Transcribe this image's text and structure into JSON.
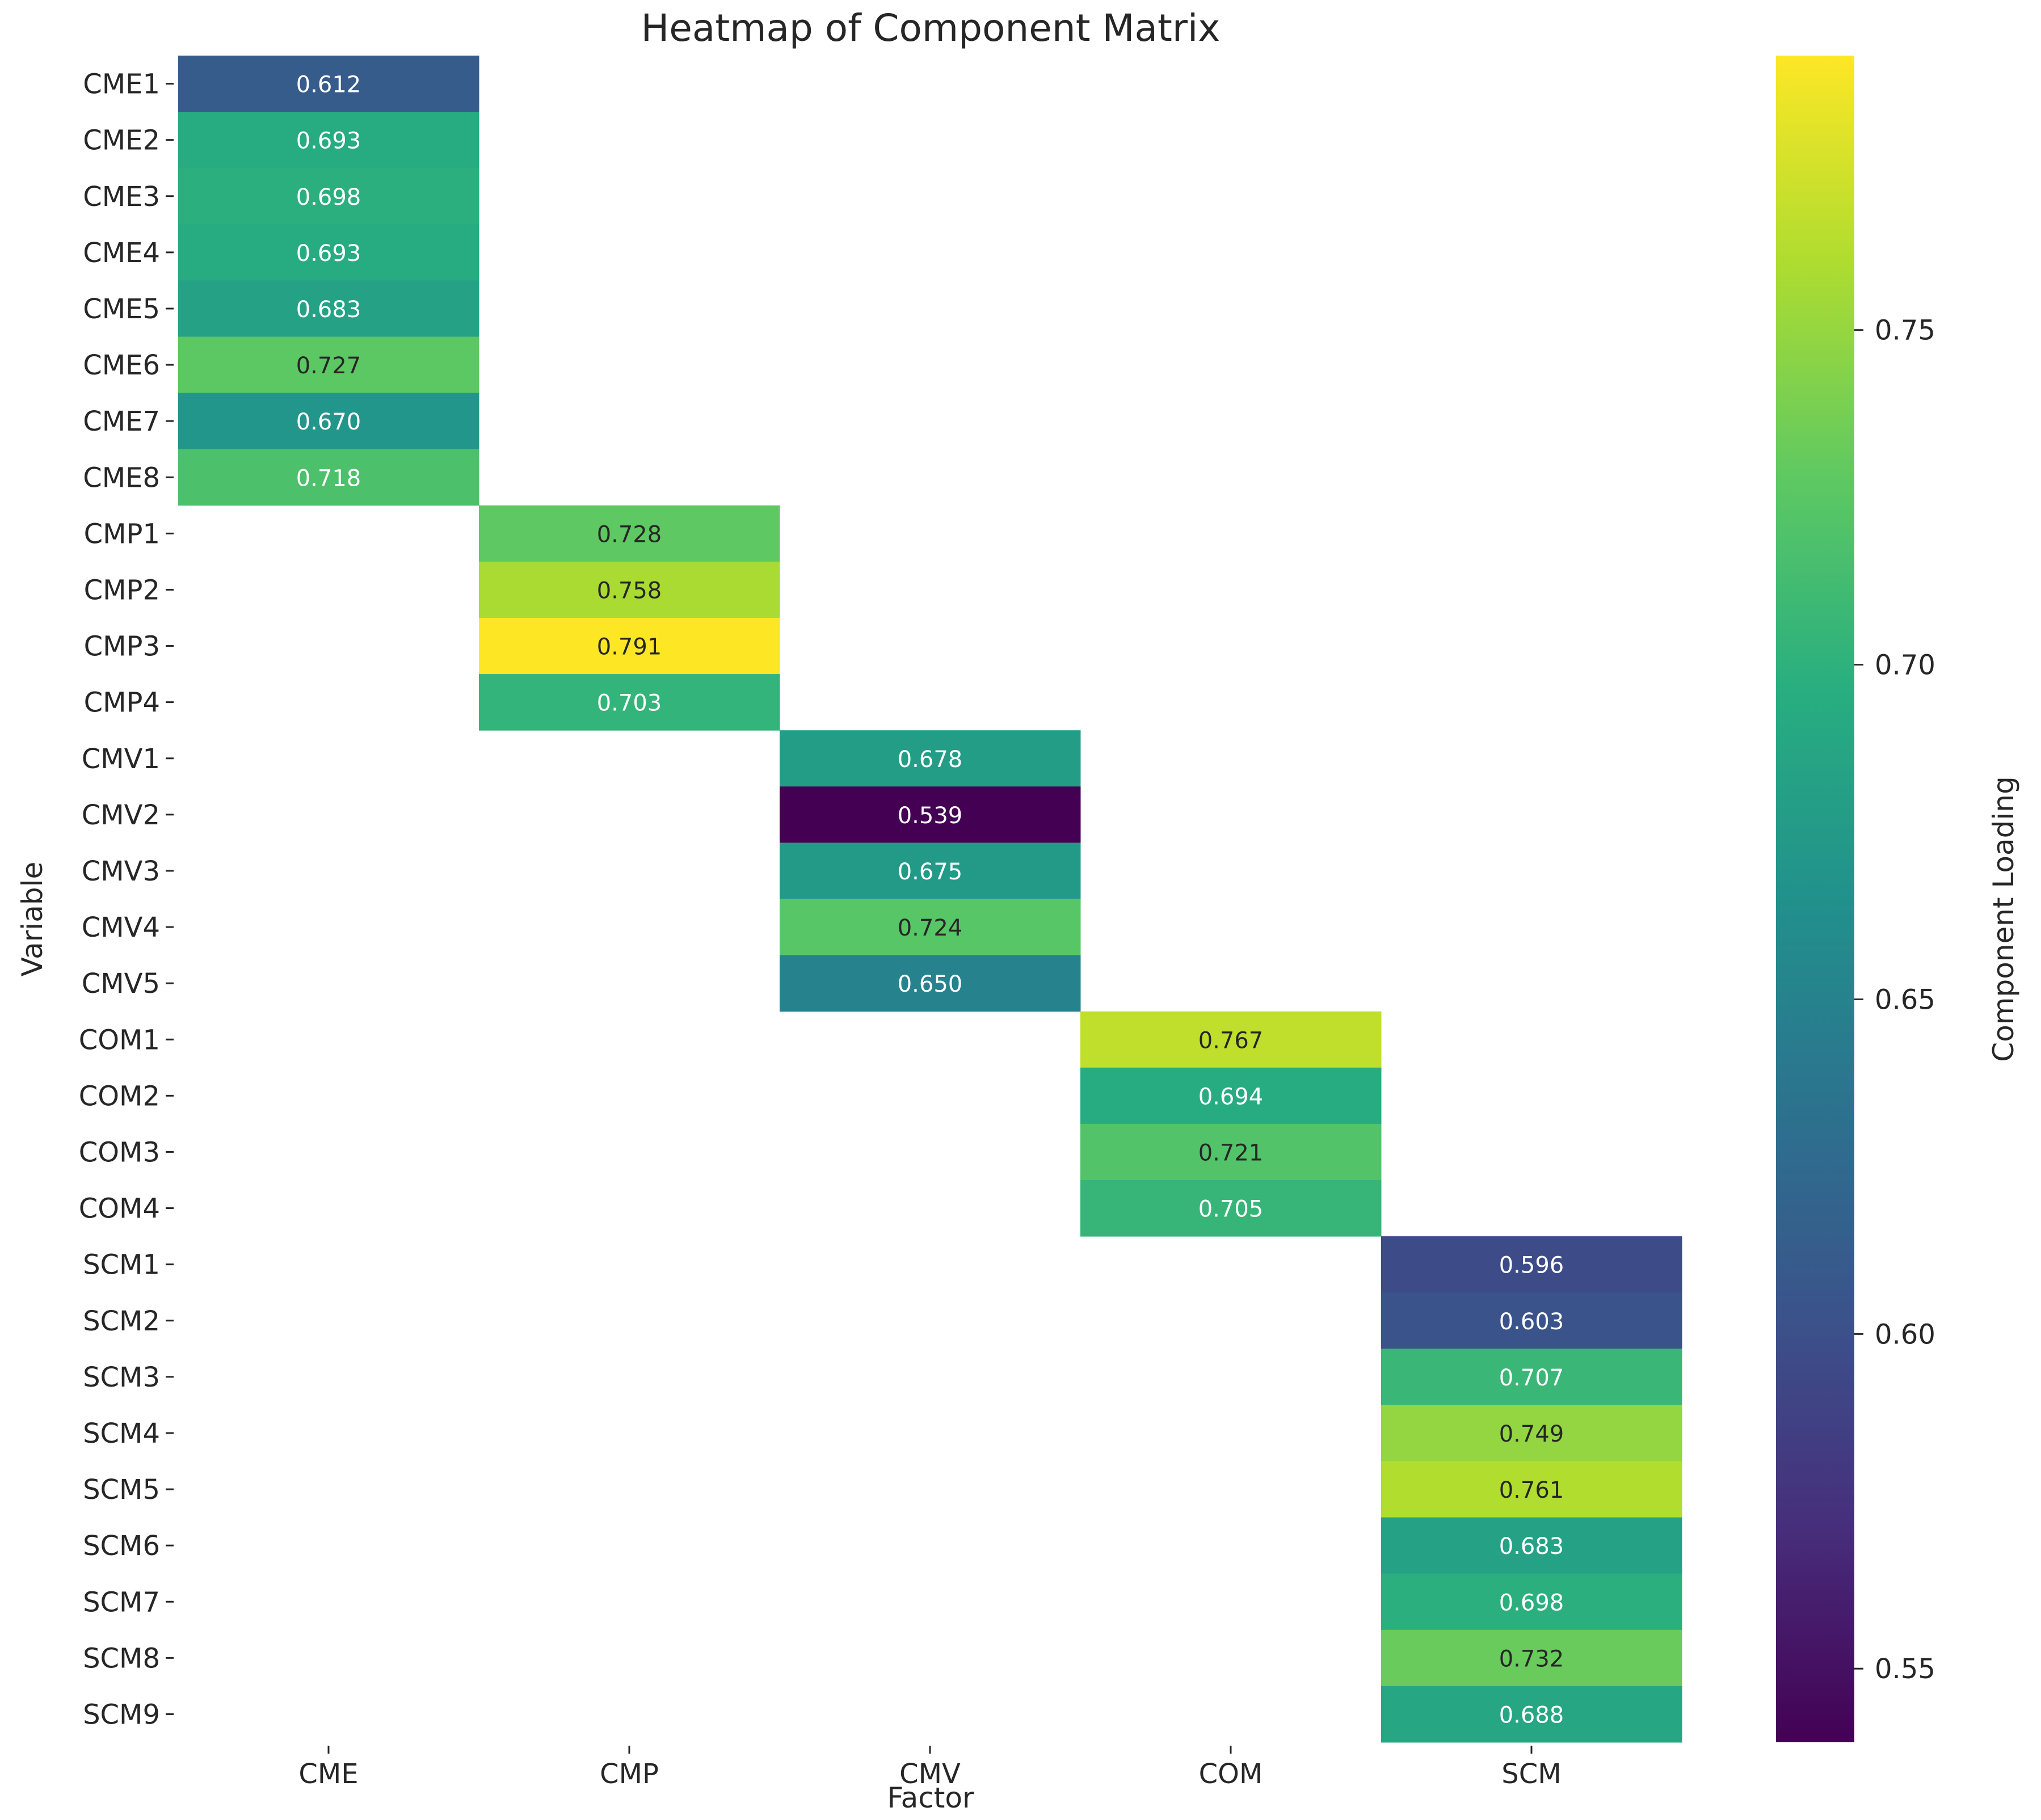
{
  "chart_data": {
    "type": "heatmap",
    "title": "Heatmap of Component Matrix",
    "xlabel": "Factor",
    "ylabel": "Variable",
    "colorbar_label": "Component Loading",
    "colormap": "viridis",
    "color_range": [
      0.539,
      0.791
    ],
    "colorbar_ticks": [
      0.55,
      0.6,
      0.65,
      0.7,
      0.75
    ],
    "colorbar_tick_labels": [
      "0.55",
      "0.60",
      "0.65",
      "0.70",
      "0.75"
    ],
    "columns": [
      "CME",
      "CMP",
      "CMV",
      "COM",
      "SCM"
    ],
    "rows": [
      "CME1",
      "CME2",
      "CME3",
      "CME4",
      "CME5",
      "CME6",
      "CME7",
      "CME8",
      "CMP1",
      "CMP2",
      "CMP3",
      "CMP4",
      "CMV1",
      "CMV2",
      "CMV3",
      "CMV4",
      "CMV5",
      "COM1",
      "COM2",
      "COM3",
      "COM4",
      "SCM1",
      "SCM2",
      "SCM3",
      "SCM4",
      "SCM5",
      "SCM6",
      "SCM7",
      "SCM8",
      "SCM9"
    ],
    "values": [
      [
        0.612,
        null,
        null,
        null,
        null
      ],
      [
        0.693,
        null,
        null,
        null,
        null
      ],
      [
        0.698,
        null,
        null,
        null,
        null
      ],
      [
        0.693,
        null,
        null,
        null,
        null
      ],
      [
        0.683,
        null,
        null,
        null,
        null
      ],
      [
        0.727,
        null,
        null,
        null,
        null
      ],
      [
        0.67,
        null,
        null,
        null,
        null
      ],
      [
        0.718,
        null,
        null,
        null,
        null
      ],
      [
        null,
        0.728,
        null,
        null,
        null
      ],
      [
        null,
        0.758,
        null,
        null,
        null
      ],
      [
        null,
        0.791,
        null,
        null,
        null
      ],
      [
        null,
        0.703,
        null,
        null,
        null
      ],
      [
        null,
        null,
        0.678,
        null,
        null
      ],
      [
        null,
        null,
        0.539,
        null,
        null
      ],
      [
        null,
        null,
        0.675,
        null,
        null
      ],
      [
        null,
        null,
        0.724,
        null,
        null
      ],
      [
        null,
        null,
        0.65,
        null,
        null
      ],
      [
        null,
        null,
        null,
        0.767,
        null
      ],
      [
        null,
        null,
        null,
        0.694,
        null
      ],
      [
        null,
        null,
        null,
        0.721,
        null
      ],
      [
        null,
        null,
        null,
        0.705,
        null
      ],
      [
        null,
        null,
        null,
        null,
        0.596
      ],
      [
        null,
        null,
        null,
        null,
        0.603
      ],
      [
        null,
        null,
        null,
        null,
        0.707
      ],
      [
        null,
        null,
        null,
        null,
        0.749
      ],
      [
        null,
        null,
        null,
        null,
        0.761
      ],
      [
        null,
        null,
        null,
        null,
        0.683
      ],
      [
        null,
        null,
        null,
        null,
        0.698
      ],
      [
        null,
        null,
        null,
        null,
        0.732
      ],
      [
        null,
        null,
        null,
        null,
        0.688
      ]
    ],
    "value_labels": [
      [
        "0.612",
        "",
        "",
        "",
        ""
      ],
      [
        "0.693",
        "",
        "",
        "",
        ""
      ],
      [
        "0.698",
        "",
        "",
        "",
        ""
      ],
      [
        "0.693",
        "",
        "",
        "",
        ""
      ],
      [
        "0.683",
        "",
        "",
        "",
        ""
      ],
      [
        "0.727",
        "",
        "",
        "",
        ""
      ],
      [
        "0.670",
        "",
        "",
        "",
        ""
      ],
      [
        "0.718",
        "",
        "",
        "",
        ""
      ],
      [
        "",
        "0.728",
        "",
        "",
        ""
      ],
      [
        "",
        "0.758",
        "",
        "",
        ""
      ],
      [
        "",
        "0.791",
        "",
        "",
        ""
      ],
      [
        "",
        "0.703",
        "",
        "",
        ""
      ],
      [
        "",
        "",
        "0.678",
        "",
        ""
      ],
      [
        "",
        "",
        "0.539",
        "",
        ""
      ],
      [
        "",
        "",
        "0.675",
        "",
        ""
      ],
      [
        "",
        "",
        "0.724",
        "",
        ""
      ],
      [
        "",
        "",
        "0.650",
        "",
        ""
      ],
      [
        "",
        "",
        "",
        "0.767",
        ""
      ],
      [
        "",
        "",
        "",
        "0.694",
        ""
      ],
      [
        "",
        "",
        "",
        "0.721",
        ""
      ],
      [
        "",
        "",
        "",
        "0.705",
        ""
      ],
      [
        "",
        "",
        "",
        "",
        "0.596"
      ],
      [
        "",
        "",
        "",
        "",
        "0.603"
      ],
      [
        "",
        "",
        "",
        "",
        "0.707"
      ],
      [
        "",
        "",
        "",
        "",
        "0.749"
      ],
      [
        "",
        "",
        "",
        "",
        "0.761"
      ],
      [
        "",
        "",
        "",
        "",
        "0.683"
      ],
      [
        "",
        "",
        "",
        "",
        "0.698"
      ],
      [
        "",
        "",
        "",
        "",
        "0.732"
      ],
      [
        "",
        "",
        "",
        "",
        "0.688"
      ]
    ]
  }
}
